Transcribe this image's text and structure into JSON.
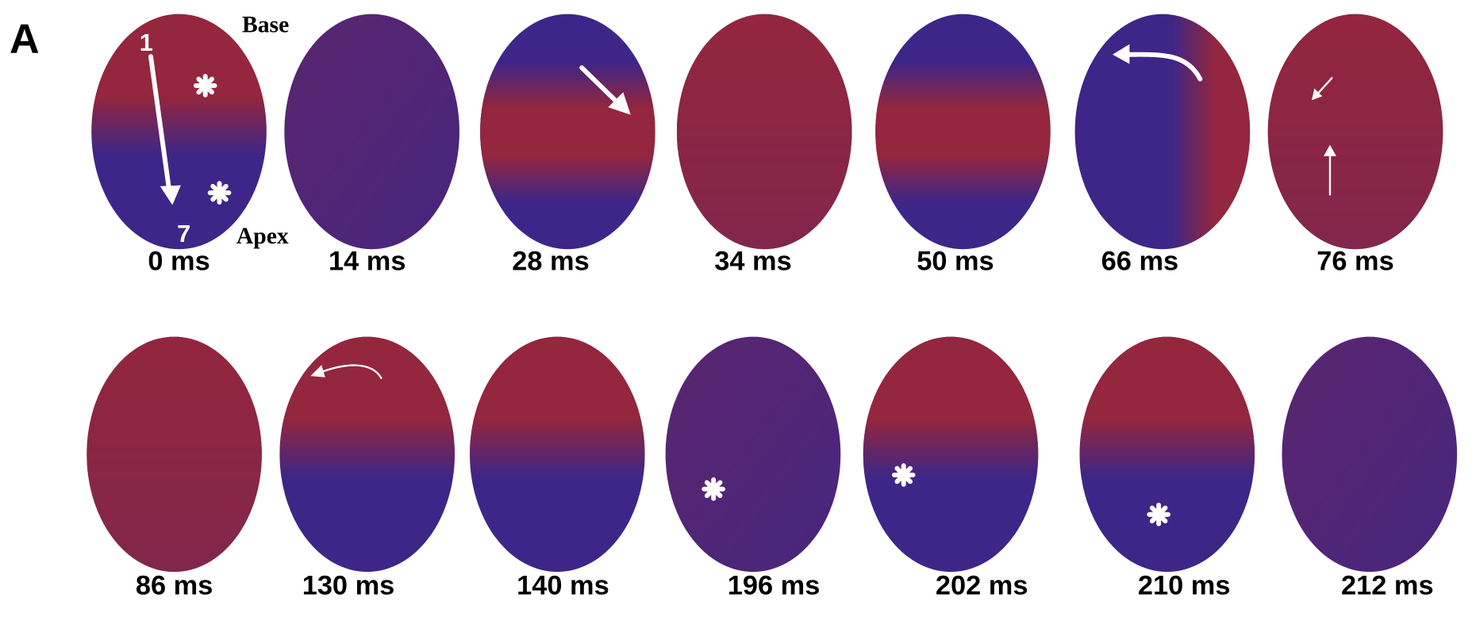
{
  "panel_label": "A",
  "annotations": {
    "base": "Base",
    "apex": "Apex",
    "start": "1",
    "end": "7"
  },
  "rows": [
    {
      "frames": [
        {
          "label": "0 ms"
        },
        {
          "label": "14 ms"
        },
        {
          "label": "28 ms"
        },
        {
          "label": "34 ms"
        },
        {
          "label": "50 ms"
        },
        {
          "label": "66 ms"
        },
        {
          "label": "76 ms"
        }
      ]
    },
    {
      "frames": [
        {
          "label": "86 ms"
        },
        {
          "label": "130 ms"
        },
        {
          "label": "140 ms"
        },
        {
          "label": "196 ms"
        },
        {
          "label": "202 ms"
        },
        {
          "label": "210 ms"
        },
        {
          "label": "212 ms"
        }
      ]
    }
  ]
}
